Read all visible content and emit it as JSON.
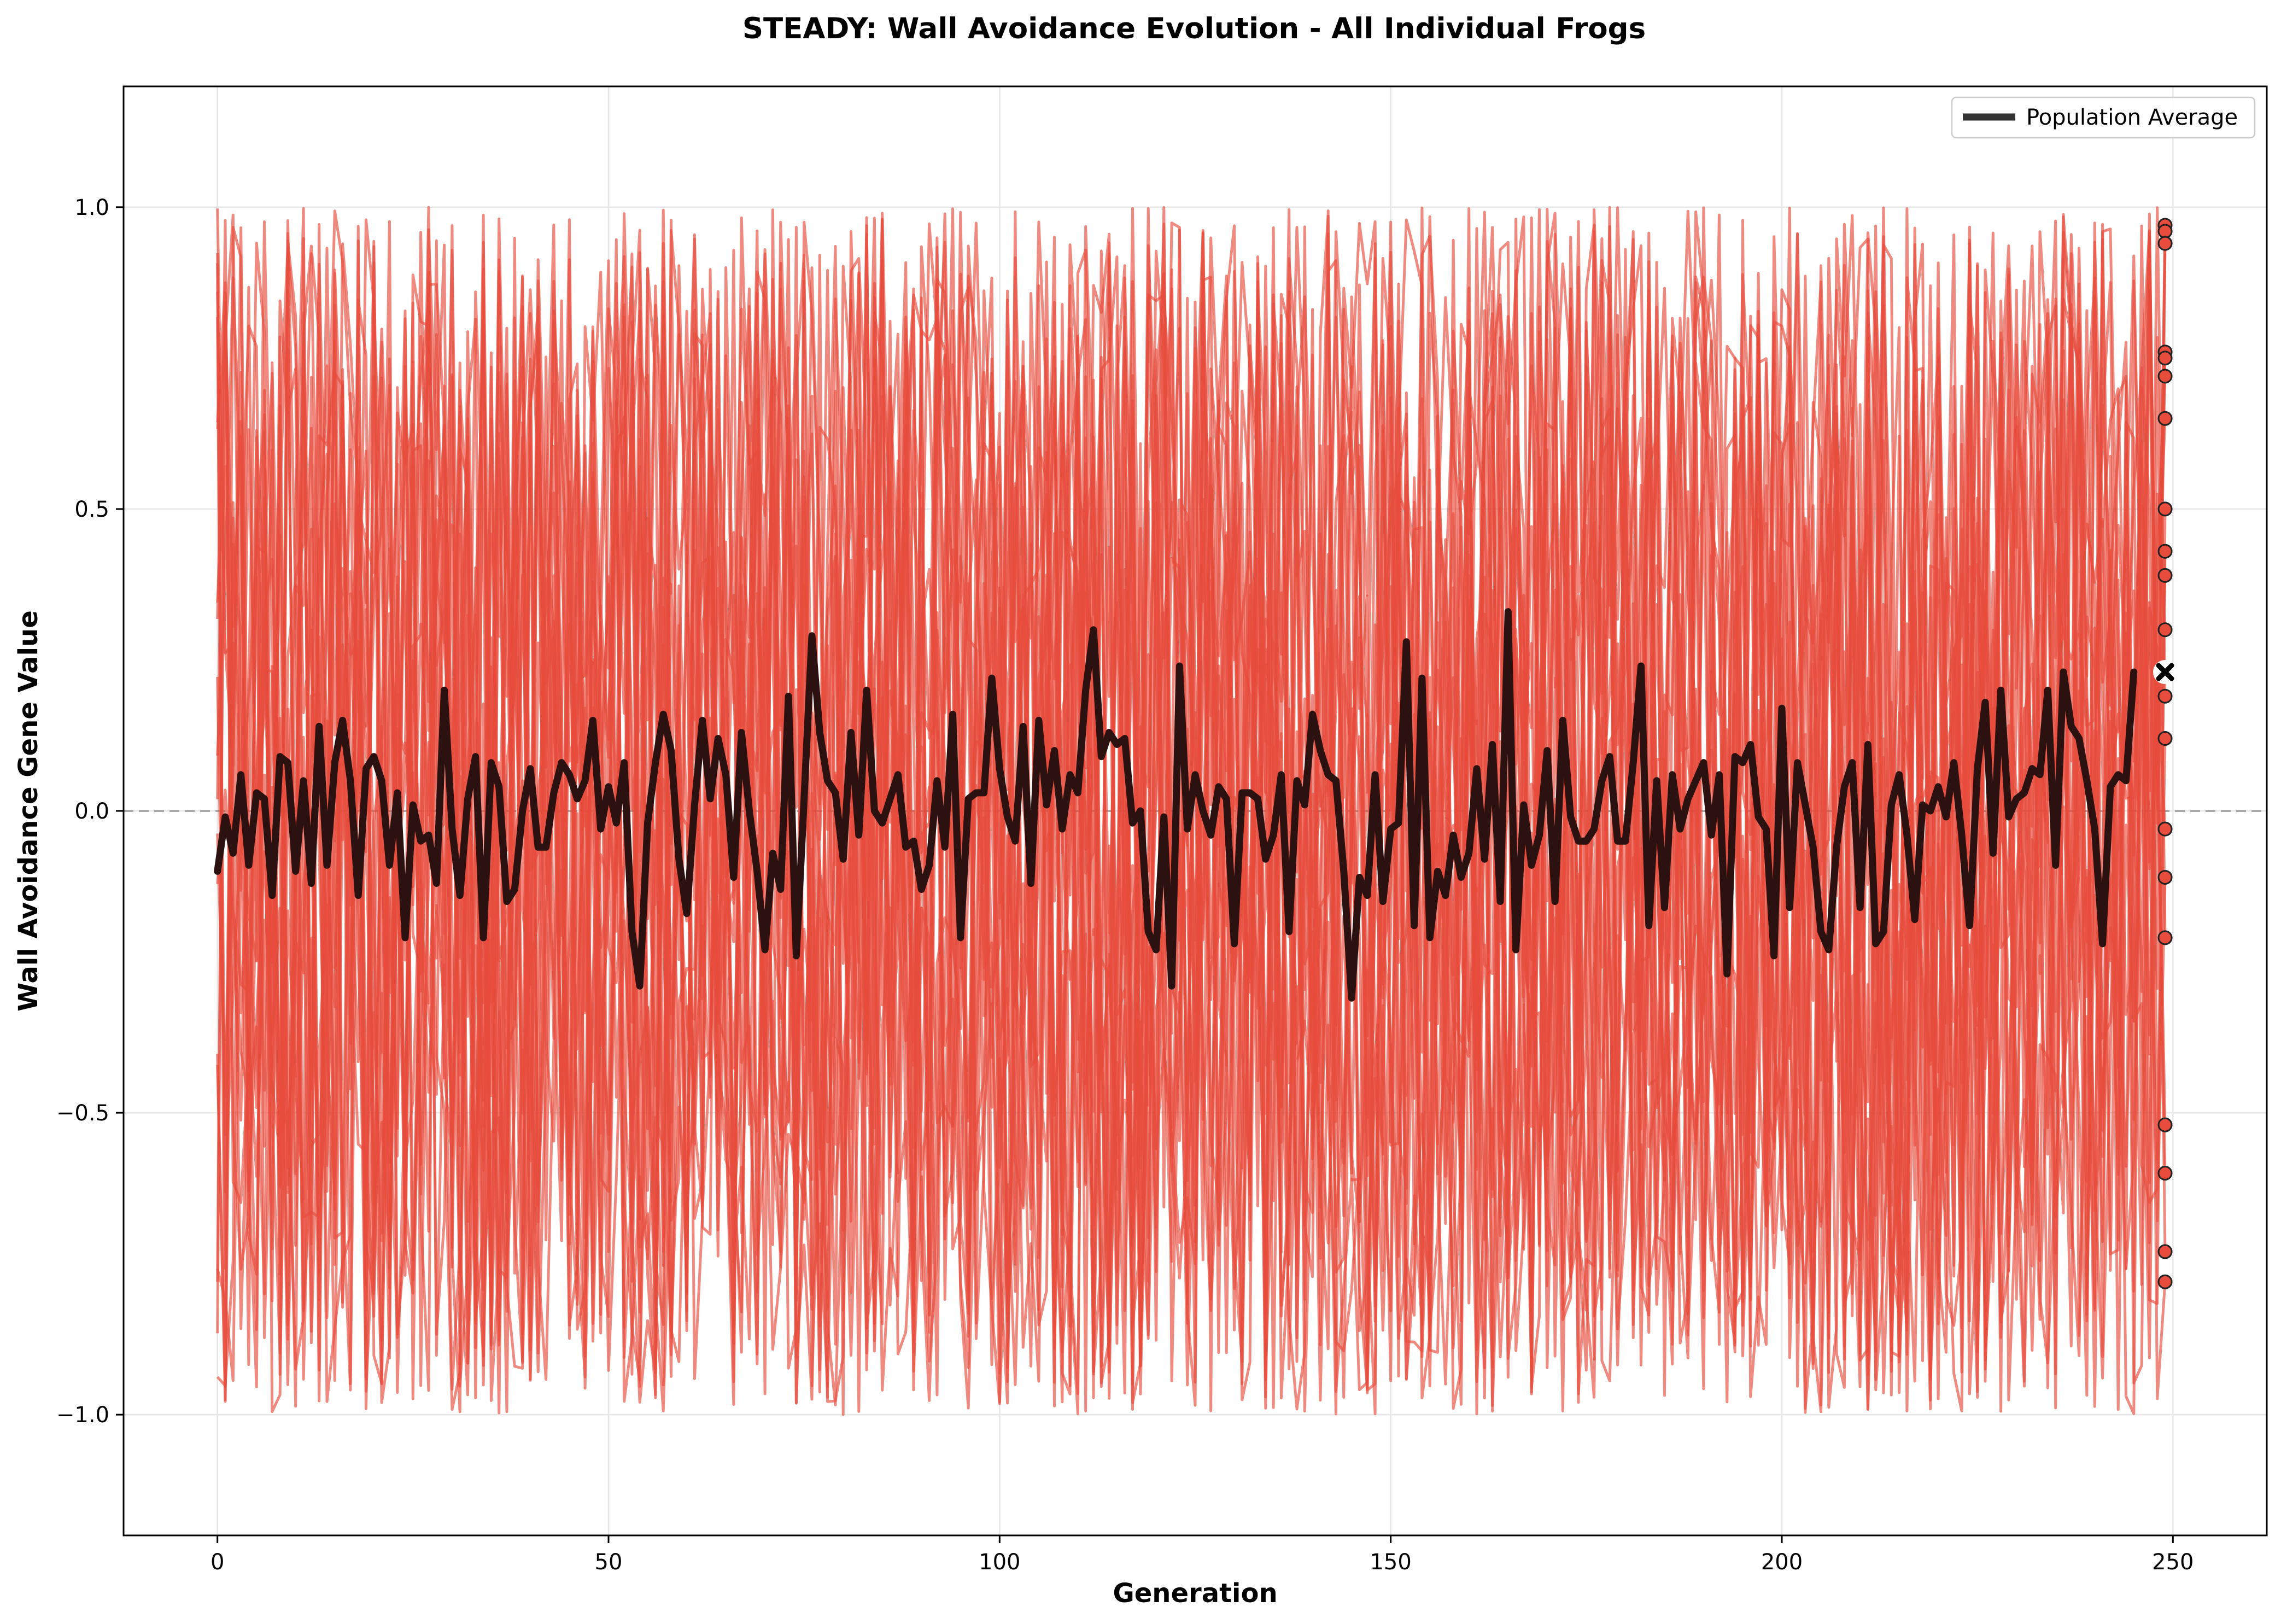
{
  "chart_data": {
    "type": "line",
    "title": "STEADY: Wall Avoidance Evolution - All Individual Frogs",
    "xlabel": "Generation",
    "ylabel": "Wall Avoidance Gene Value",
    "xlim": [
      -12,
      262
    ],
    "ylim": [
      -1.2,
      1.2
    ],
    "x_ticks": [
      0,
      50,
      100,
      150,
      200,
      250
    ],
    "y_ticks": [
      -1.0,
      -0.5,
      0.0,
      0.5,
      1.0
    ],
    "x_tick_labels": [
      "0",
      "50",
      "100",
      "150",
      "200",
      "250"
    ],
    "y_tick_labels": [
      "−1.0",
      "−0.5",
      "0.0",
      "0.5",
      "1.0"
    ],
    "grid": true,
    "legend_position": "top-right",
    "legend": [
      "Population Average"
    ],
    "reference_line": {
      "y": 0.0,
      "style": "dashed",
      "color": "#aaaaaa"
    },
    "individual_lines": {
      "count": 20,
      "color": "#e74c3c",
      "x_start": 0,
      "x_end": 249,
      "value_range": [
        -1.0,
        1.0
      ],
      "final_values": [
        0.97,
        0.96,
        0.94,
        0.76,
        0.75,
        0.72,
        0.65,
        0.5,
        0.43,
        0.39,
        0.3,
        0.19,
        0.12,
        -0.03,
        -0.11,
        -0.21,
        -0.52,
        -0.6,
        -0.73,
        -0.78
      ]
    },
    "series": [
      {
        "name": "Population Average",
        "color": "#2b1210",
        "x_start": 0,
        "values": [
          -0.1,
          -0.01,
          -0.07,
          0.06,
          -0.09,
          0.03,
          0.02,
          -0.14,
          0.09,
          0.08,
          -0.1,
          0.05,
          -0.12,
          0.14,
          -0.09,
          0.08,
          0.15,
          0.05,
          -0.14,
          0.07,
          0.09,
          0.05,
          -0.09,
          0.03,
          -0.21,
          0.01,
          -0.05,
          -0.04,
          -0.12,
          0.2,
          -0.03,
          -0.14,
          0.02,
          0.09,
          -0.21,
          0.08,
          0.04,
          -0.15,
          -0.13,
          0.0,
          0.07,
          -0.06,
          -0.06,
          0.03,
          0.08,
          0.06,
          0.02,
          0.05,
          0.15,
          -0.03,
          0.04,
          -0.02,
          0.08,
          -0.2,
          -0.29,
          -0.02,
          0.08,
          0.16,
          0.1,
          -0.08,
          -0.17,
          0.01,
          0.15,
          0.02,
          0.12,
          0.06,
          -0.11,
          0.13,
          0.0,
          -0.1,
          -0.23,
          -0.07,
          -0.13,
          0.19,
          -0.24,
          0.02,
          0.29,
          0.13,
          0.05,
          0.03,
          -0.08,
          0.13,
          -0.04,
          0.2,
          0.0,
          -0.02,
          0.02,
          0.06,
          -0.06,
          -0.05,
          -0.13,
          -0.09,
          0.05,
          -0.06,
          0.16,
          -0.21,
          0.02,
          0.03,
          0.03,
          0.22,
          0.07,
          -0.01,
          -0.05,
          0.14,
          -0.12,
          0.15,
          0.01,
          0.1,
          -0.03,
          0.06,
          0.03,
          0.2,
          0.3,
          0.09,
          0.13,
          0.11,
          0.12,
          -0.02,
          0.0,
          -0.2,
          -0.23,
          -0.01,
          -0.29,
          0.24,
          -0.03,
          0.06,
          0.0,
          -0.04,
          0.04,
          0.02,
          -0.22,
          0.03,
          0.03,
          0.02,
          -0.08,
          -0.04,
          0.06,
          -0.2,
          0.05,
          0.01,
          0.16,
          0.1,
          0.06,
          0.05,
          -0.1,
          -0.31,
          -0.11,
          -0.14,
          0.06,
          -0.15,
          -0.03,
          -0.02,
          0.28,
          -0.19,
          0.22,
          -0.21,
          -0.1,
          -0.14,
          -0.04,
          -0.11,
          -0.07,
          0.07,
          -0.08,
          0.11,
          -0.15,
          0.33,
          -0.23,
          0.01,
          -0.09,
          -0.04,
          0.1,
          -0.15,
          0.15,
          -0.01,
          -0.05,
          -0.05,
          -0.03,
          0.05,
          0.09,
          -0.05,
          -0.05,
          0.08,
          0.24,
          -0.19,
          0.05,
          -0.16,
          0.06,
          -0.03,
          0.02,
          0.05,
          0.08,
          -0.04,
          0.06,
          -0.27,
          0.09,
          0.08,
          0.11,
          -0.01,
          -0.03,
          -0.24,
          0.17,
          -0.16,
          0.08,
          0.01,
          -0.06,
          -0.2,
          -0.23,
          -0.06,
          0.04,
          0.08,
          -0.16,
          0.11,
          -0.22,
          -0.2,
          0.01,
          0.06,
          -0.04,
          -0.18,
          0.01,
          0.0,
          0.04,
          -0.01,
          0.08,
          -0.04,
          -0.19,
          0.07,
          0.18,
          -0.07,
          0.2,
          -0.01,
          0.02,
          0.03,
          0.07,
          0.06,
          0.2,
          -0.09,
          0.23,
          0.14,
          0.12,
          0.05,
          -0.03,
          -0.22,
          0.04,
          0.06,
          0.05,
          0.23
        ]
      }
    ],
    "final_average_marker": {
      "x": 249,
      "y": 0.23,
      "symbol": "x"
    }
  }
}
